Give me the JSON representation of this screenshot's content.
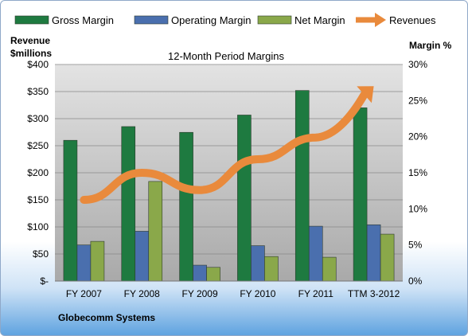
{
  "chart_data": {
    "type": "bar",
    "title": "12-Month Period Margins",
    "footer_label": "Globecomm Systems",
    "ylabel_left": [
      "Revenue",
      "$millions"
    ],
    "ylabel_right": "Margin %",
    "categories": [
      "FY 2007",
      "FY 2008",
      "FY 2009",
      "FY 2010",
      "FY 2011",
      "TTM 3-2012"
    ],
    "left_axis": {
      "min": 0,
      "max": 400,
      "step": 50,
      "ticks": [
        "$-",
        "$50",
        "$100",
        "$150",
        "$200",
        "$250",
        "$300",
        "$350",
        "$400"
      ]
    },
    "right_axis": {
      "min": 0,
      "max": 30,
      "step": 5,
      "ticks": [
        "0%",
        "5%",
        "10%",
        "15%",
        "20%",
        "25%",
        "30%"
      ]
    },
    "series": [
      {
        "name": "Gross Margin",
        "axis": "right",
        "color": "#1e7a40",
        "values": [
          19.5,
          21.4,
          20.6,
          23.0,
          26.4,
          24.0
        ]
      },
      {
        "name": "Operating Margin",
        "axis": "right",
        "color": "#4a6fae",
        "values": [
          5.0,
          6.9,
          2.2,
          4.9,
          7.6,
          7.8
        ]
      },
      {
        "name": "Net Margin",
        "axis": "right",
        "color": "#8aa84a",
        "values": [
          5.5,
          13.8,
          1.9,
          3.4,
          3.3,
          6.5
        ]
      },
      {
        "name": "Revenues",
        "axis": "left",
        "type": "line",
        "color": "#e98a3c",
        "values": [
          150,
          200,
          168,
          225,
          265,
          360
        ]
      }
    ],
    "legend_position": "top",
    "grid": true
  }
}
